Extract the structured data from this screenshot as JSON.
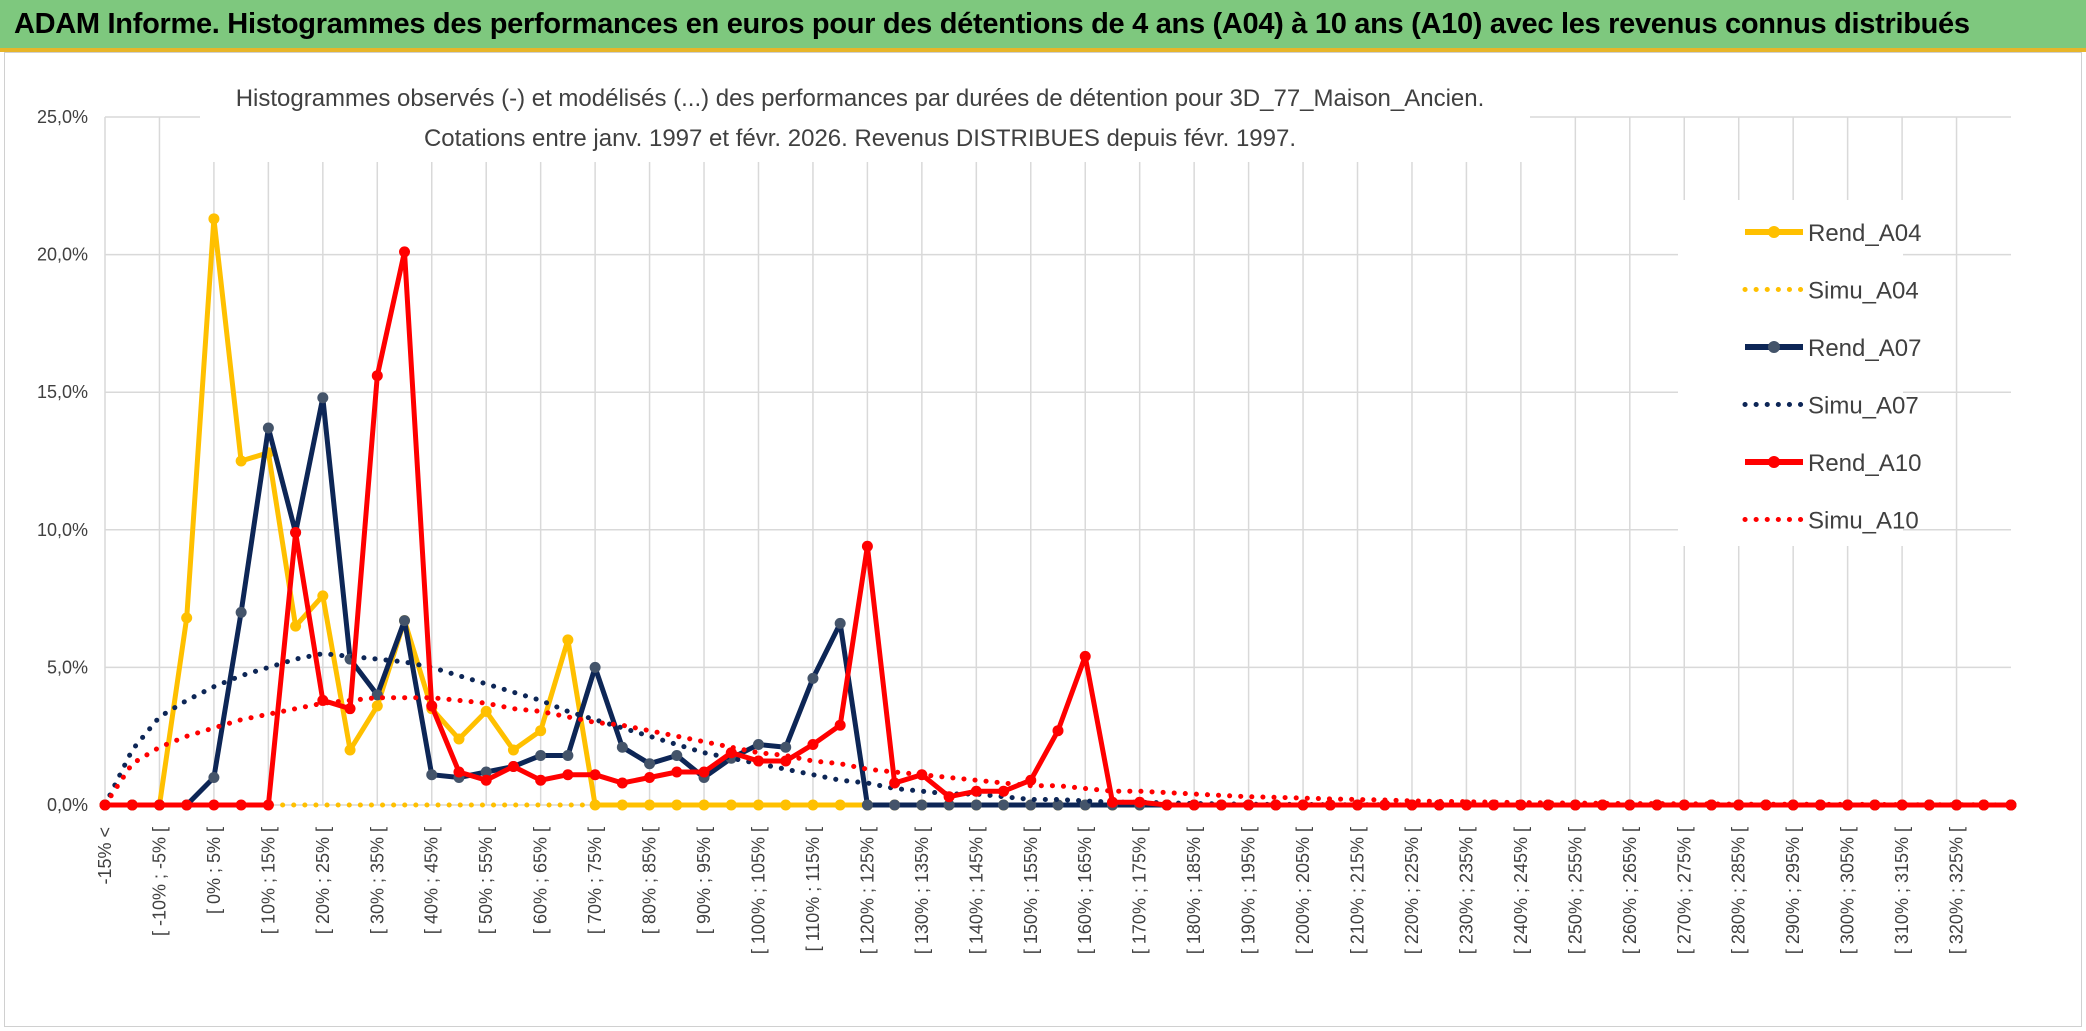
{
  "banner": {
    "title": "ADAM Informe. Histogrammes des performances en euros pour des détentions de 4 ans (A04) à 10 ans (A10) avec les revenus connus distribués"
  },
  "chart_data": {
    "type": "line",
    "title_line1": "Histogrammes observés (-) et modélisés (...) des performances par durées de détention pour 3D_77_Maison_Ancien.",
    "title_line2": "Cotations entre janv. 1997 et févr. 2026. Revenus DISTRIBUES depuis févr. 1997.",
    "xlabel": "",
    "ylabel": "",
    "ylim": [
      0,
      25
    ],
    "y_ticks": [
      "0,0%",
      "5,0%",
      "10,0%",
      "15,0%",
      "20,0%",
      "25,0%"
    ],
    "grid": true,
    "legend_position": "right",
    "x_tick_labels": [
      "-15% <",
      "[ -10% ; -5% [",
      "[ 0% ; 5% [",
      "[ 10% ; 15% [",
      "[ 20% ; 25% [",
      "[ 30% ; 35% [",
      "[ 40% ; 45% [",
      "[ 50% ; 55% [",
      "[ 60% ; 65% [",
      "[ 70% ; 75% [",
      "[ 80% ; 85% [",
      "[ 90% ; 95% [",
      "[ 100% ; 105% [",
      "[ 110% ; 115% [",
      "[ 120% ; 125% [",
      "[ 130% ; 135% [",
      "[ 140% ; 145% [",
      "[ 150% ; 155% [",
      "[ 160% ; 165% [",
      "[ 170% ; 175% [",
      "[ 180% ; 185% [",
      "[ 190% ; 195% [",
      "[ 200% ; 205% [",
      "[ 210% ; 215% [",
      "[ 220% ; 225% [",
      "[ 230% ; 235% [",
      "[ 240% ; 245% [",
      "[ 250% ; 255% [",
      "[ 260% ; 265% [",
      "[ 270% ; 275% [",
      "[ 280% ; 285% [",
      "[ 290% ; 295% [",
      "[ 300% ; 305% [",
      "[ 310% ; 315% [",
      "[ 320% ; 325% ["
    ],
    "series": [
      {
        "name": "Rend_A04",
        "style": "solid",
        "color": "#ffc000",
        "values": [
          0,
          0,
          0,
          6.8,
          21.3,
          12.5,
          12.8,
          6.5,
          7.6,
          2.0,
          3.6,
          6.7,
          3.5,
          2.4,
          3.4,
          2.0,
          2.7,
          6.0,
          0,
          0,
          0,
          0,
          0,
          0,
          0,
          0,
          0,
          0,
          0,
          0,
          0,
          0,
          0,
          0,
          0,
          0,
          0,
          0,
          0,
          0,
          0,
          0,
          0,
          0,
          0,
          0,
          0,
          0,
          0,
          0,
          0,
          0,
          0,
          0,
          0,
          0,
          0,
          0,
          0,
          0,
          0,
          0,
          0,
          0,
          0,
          0,
          0,
          0,
          0,
          0,
          0
        ]
      },
      {
        "name": "Simu_A04",
        "style": "dotted",
        "color": "#ffc000",
        "values": [
          0,
          0,
          0,
          0,
          0,
          0,
          0,
          0,
          0,
          0,
          0,
          0,
          0,
          0,
          0,
          0,
          0,
          0,
          0,
          0,
          0,
          0,
          0,
          0,
          0,
          0,
          0,
          0,
          0,
          0,
          0,
          0,
          0,
          0,
          0,
          0,
          0,
          0,
          0,
          0,
          0,
          0,
          0,
          0,
          0,
          0,
          0,
          0,
          0,
          0,
          0,
          0,
          0,
          0,
          0,
          0,
          0,
          0,
          0,
          0,
          0,
          0,
          0,
          0,
          0,
          0,
          0,
          0,
          0,
          0,
          0
        ]
      },
      {
        "name": "Rend_A07",
        "style": "solid",
        "color": "#0d2656",
        "values": [
          0,
          0,
          0,
          0,
          1.0,
          7.0,
          13.7,
          9.9,
          14.8,
          5.3,
          4.0,
          6.7,
          1.1,
          1.0,
          1.2,
          1.4,
          1.8,
          1.8,
          5.0,
          2.1,
          1.5,
          1.8,
          1.0,
          1.7,
          2.2,
          2.1,
          4.6,
          6.6,
          0,
          0,
          0,
          0,
          0,
          0,
          0,
          0,
          0,
          0,
          0,
          0,
          0,
          0,
          0,
          0,
          0,
          0,
          0,
          0,
          0,
          0,
          0,
          0,
          0,
          0,
          0,
          0,
          0,
          0,
          0,
          0,
          0,
          0,
          0,
          0,
          0,
          0,
          0,
          0,
          0,
          0,
          0
        ]
      },
      {
        "name": "Simu_A07",
        "style": "dotted",
        "color": "#0d2656",
        "values": [
          0,
          2.0,
          3.2,
          3.8,
          4.3,
          4.7,
          5.0,
          5.3,
          5.5,
          5.4,
          5.3,
          5.2,
          5.0,
          4.7,
          4.4,
          4.1,
          3.8,
          3.4,
          3.1,
          2.8,
          2.5,
          2.2,
          1.9,
          1.7,
          1.5,
          1.3,
          1.1,
          0.9,
          0.8,
          0.6,
          0.5,
          0.4,
          0.4,
          0.3,
          0.2,
          0.2,
          0.15,
          0.1,
          0.1,
          0.08,
          0.05,
          0.04,
          0.03,
          0.02,
          0.02,
          0.01,
          0.01,
          0.01,
          0,
          0,
          0,
          0,
          0,
          0,
          0,
          0,
          0,
          0,
          0,
          0,
          0,
          0,
          0,
          0,
          0,
          0,
          0,
          0,
          0,
          0,
          0
        ]
      },
      {
        "name": "Rend_A10",
        "style": "solid",
        "color": "#ff0000",
        "values": [
          0,
          0,
          0,
          0,
          0,
          0,
          0,
          9.9,
          3.8,
          3.5,
          15.6,
          20.1,
          3.6,
          1.2,
          0.9,
          1.4,
          0.9,
          1.1,
          1.1,
          0.8,
          1.0,
          1.2,
          1.2,
          1.9,
          1.6,
          1.6,
          2.2,
          2.9,
          9.4,
          0.8,
          1.1,
          0.3,
          0.5,
          0.5,
          0.9,
          2.7,
          5.4,
          0.1,
          0.1,
          0,
          0,
          0,
          0,
          0,
          0,
          0,
          0,
          0,
          0,
          0,
          0,
          0,
          0,
          0,
          0,
          0,
          0,
          0,
          0,
          0,
          0,
          0,
          0,
          0,
          0,
          0,
          0,
          0,
          0,
          0,
          0
        ]
      },
      {
        "name": "Simu_A10",
        "style": "dotted",
        "color": "#ff0000",
        "values": [
          0,
          1.5,
          2.1,
          2.5,
          2.8,
          3.1,
          3.3,
          3.5,
          3.7,
          3.8,
          3.9,
          3.9,
          3.9,
          3.8,
          3.7,
          3.5,
          3.4,
          3.2,
          3.0,
          2.9,
          2.7,
          2.5,
          2.3,
          2.1,
          1.9,
          1.8,
          1.6,
          1.5,
          1.3,
          1.2,
          1.1,
          1.0,
          0.9,
          0.8,
          0.7,
          0.7,
          0.6,
          0.5,
          0.5,
          0.45,
          0.4,
          0.35,
          0.3,
          0.28,
          0.25,
          0.22,
          0.2,
          0.18,
          0.15,
          0.13,
          0.12,
          0.1,
          0.09,
          0.08,
          0.07,
          0.06,
          0.05,
          0.05,
          0.04,
          0.04,
          0.03,
          0.03,
          0.03,
          0.02,
          0.02,
          0.02,
          0.01,
          0.01,
          0.01,
          0.01,
          0
        ]
      }
    ]
  }
}
